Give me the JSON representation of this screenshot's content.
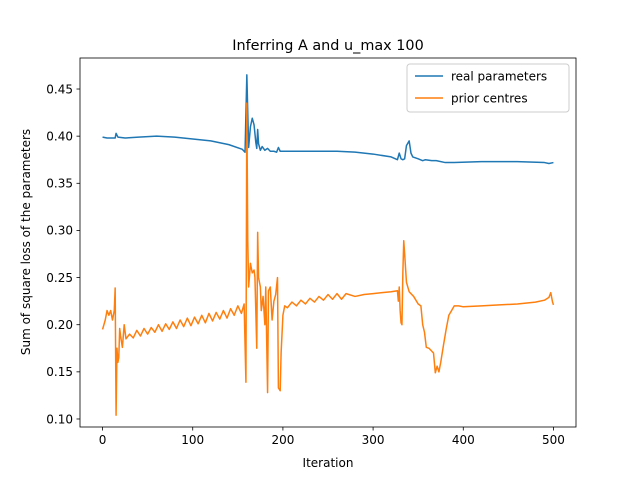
{
  "chart_data": {
    "type": "line",
    "title": "Inferring A and u_max 100",
    "xlabel": "Iteration",
    "ylabel": "Sum of square loss of the parameters",
    "xlim": [
      -25,
      525
    ],
    "ylim": [
      0.0915,
      0.4829
    ],
    "x_ticks": [
      0,
      100,
      200,
      300,
      400,
      500
    ],
    "x_tick_labels": [
      "0",
      "100",
      "200",
      "300",
      "400",
      "500"
    ],
    "y_ticks": [
      0.1,
      0.15,
      0.2,
      0.25,
      0.3,
      0.35,
      0.4,
      0.45
    ],
    "y_tick_labels": [
      "0.10",
      "0.15",
      "0.20",
      "0.25",
      "0.30",
      "0.35",
      "0.40",
      "0.45"
    ],
    "grid": false,
    "legend_position": "top-right",
    "series": [
      {
        "name": "real parameters",
        "color": "#1f77b4",
        "points": [
          [
            0,
            0.399
          ],
          [
            5,
            0.398
          ],
          [
            10,
            0.398
          ],
          [
            14,
            0.398
          ],
          [
            15,
            0.403
          ],
          [
            17,
            0.399
          ],
          [
            25,
            0.398
          ],
          [
            40,
            0.399
          ],
          [
            60,
            0.4
          ],
          [
            80,
            0.399
          ],
          [
            100,
            0.397
          ],
          [
            120,
            0.395
          ],
          [
            140,
            0.391
          ],
          [
            155,
            0.386
          ],
          [
            158,
            0.383
          ],
          [
            160,
            0.465
          ],
          [
            162,
            0.388
          ],
          [
            164,
            0.41
          ],
          [
            166,
            0.419
          ],
          [
            168,
            0.412
          ],
          [
            170,
            0.393
          ],
          [
            171,
            0.387
          ],
          [
            172,
            0.407
          ],
          [
            173,
            0.392
          ],
          [
            175,
            0.385
          ],
          [
            177,
            0.389
          ],
          [
            180,
            0.385
          ],
          [
            183,
            0.387
          ],
          [
            186,
            0.384
          ],
          [
            190,
            0.384
          ],
          [
            193,
            0.383
          ],
          [
            195,
            0.388
          ],
          [
            197,
            0.384
          ],
          [
            210,
            0.384
          ],
          [
            240,
            0.384
          ],
          [
            260,
            0.384
          ],
          [
            280,
            0.383
          ],
          [
            300,
            0.381
          ],
          [
            320,
            0.378
          ],
          [
            327,
            0.375
          ],
          [
            329,
            0.382
          ],
          [
            331,
            0.376
          ],
          [
            333,
            0.375
          ],
          [
            335,
            0.376
          ],
          [
            337,
            0.39
          ],
          [
            340,
            0.395
          ],
          [
            342,
            0.382
          ],
          [
            344,
            0.378
          ],
          [
            350,
            0.376
          ],
          [
            355,
            0.374
          ],
          [
            358,
            0.375
          ],
          [
            365,
            0.374
          ],
          [
            370,
            0.374
          ],
          [
            380,
            0.372
          ],
          [
            390,
            0.372
          ],
          [
            420,
            0.373
          ],
          [
            460,
            0.373
          ],
          [
            490,
            0.372
          ],
          [
            495,
            0.371
          ],
          [
            500,
            0.372
          ]
        ]
      },
      {
        "name": "prior centres",
        "color": "#ff7f0e",
        "points": [
          [
            0,
            0.195
          ],
          [
            3,
            0.205
          ],
          [
            5,
            0.215
          ],
          [
            7,
            0.21
          ],
          [
            9,
            0.215
          ],
          [
            11,
            0.205
          ],
          [
            13,
            0.215
          ],
          [
            14,
            0.239
          ],
          [
            15,
            0.104
          ],
          [
            16,
            0.175
          ],
          [
            17,
            0.16
          ],
          [
            18,
            0.165
          ],
          [
            19,
            0.196
          ],
          [
            20,
            0.188
          ],
          [
            22,
            0.176
          ],
          [
            24,
            0.2
          ],
          [
            26,
            0.185
          ],
          [
            30,
            0.19
          ],
          [
            34,
            0.186
          ],
          [
            38,
            0.194
          ],
          [
            42,
            0.188
          ],
          [
            46,
            0.196
          ],
          [
            50,
            0.19
          ],
          [
            54,
            0.197
          ],
          [
            58,
            0.192
          ],
          [
            62,
            0.2
          ],
          [
            66,
            0.193
          ],
          [
            70,
            0.201
          ],
          [
            74,
            0.195
          ],
          [
            78,
            0.203
          ],
          [
            82,
            0.196
          ],
          [
            86,
            0.205
          ],
          [
            90,
            0.198
          ],
          [
            94,
            0.207
          ],
          [
            98,
            0.199
          ],
          [
            102,
            0.208
          ],
          [
            106,
            0.201
          ],
          [
            110,
            0.21
          ],
          [
            114,
            0.202
          ],
          [
            118,
            0.212
          ],
          [
            122,
            0.204
          ],
          [
            126,
            0.213
          ],
          [
            130,
            0.206
          ],
          [
            134,
            0.215
          ],
          [
            138,
            0.207
          ],
          [
            142,
            0.217
          ],
          [
            146,
            0.21
          ],
          [
            150,
            0.22
          ],
          [
            154,
            0.212
          ],
          [
            157,
            0.222
          ],
          [
            158,
            0.18
          ],
          [
            159,
            0.139
          ],
          [
            160,
            0.435
          ],
          [
            161,
            0.29
          ],
          [
            162,
            0.24
          ],
          [
            164,
            0.265
          ],
          [
            166,
            0.255
          ],
          [
            168,
            0.258
          ],
          [
            169,
            0.25
          ],
          [
            171,
            0.175
          ],
          [
            172,
            0.298
          ],
          [
            173,
            0.25
          ],
          [
            175,
            0.24
          ],
          [
            176,
            0.215
          ],
          [
            178,
            0.23
          ],
          [
            180,
            0.2
          ],
          [
            181,
            0.24
          ],
          [
            183,
            0.128
          ],
          [
            184,
            0.236
          ],
          [
            186,
            0.24
          ],
          [
            188,
            0.205
          ],
          [
            190,
            0.225
          ],
          [
            192,
            0.232
          ],
          [
            194,
            0.25
          ],
          [
            195,
            0.133
          ],
          [
            197,
            0.13
          ],
          [
            198,
            0.17
          ],
          [
            200,
            0.21
          ],
          [
            202,
            0.22
          ],
          [
            205,
            0.218
          ],
          [
            210,
            0.224
          ],
          [
            215,
            0.22
          ],
          [
            220,
            0.226
          ],
          [
            225,
            0.222
          ],
          [
            230,
            0.228
          ],
          [
            235,
            0.224
          ],
          [
            240,
            0.23
          ],
          [
            245,
            0.226
          ],
          [
            250,
            0.232
          ],
          [
            255,
            0.227
          ],
          [
            260,
            0.233
          ],
          [
            265,
            0.227
          ],
          [
            270,
            0.233
          ],
          [
            280,
            0.23
          ],
          [
            290,
            0.232
          ],
          [
            300,
            0.233
          ],
          [
            310,
            0.234
          ],
          [
            320,
            0.235
          ],
          [
            327,
            0.236
          ],
          [
            328,
            0.225
          ],
          [
            329,
            0.24
          ],
          [
            330,
            0.215
          ],
          [
            331,
            0.202
          ],
          [
            332,
            0.2
          ],
          [
            333,
            0.255
          ],
          [
            334,
            0.289
          ],
          [
            335,
            0.275
          ],
          [
            337,
            0.245
          ],
          [
            340,
            0.235
          ],
          [
            345,
            0.23
          ],
          [
            350,
            0.222
          ],
          [
            353,
            0.22
          ],
          [
            355,
            0.2
          ],
          [
            357,
            0.192
          ],
          [
            359,
            0.176
          ],
          [
            362,
            0.175
          ],
          [
            365,
            0.172
          ],
          [
            367,
            0.17
          ],
          [
            369,
            0.149
          ],
          [
            371,
            0.156
          ],
          [
            373,
            0.15
          ],
          [
            375,
            0.16
          ],
          [
            378,
            0.178
          ],
          [
            381,
            0.195
          ],
          [
            384,
            0.21
          ],
          [
            387,
            0.215
          ],
          [
            390,
            0.22
          ],
          [
            395,
            0.22
          ],
          [
            400,
            0.219
          ],
          [
            420,
            0.22
          ],
          [
            440,
            0.221
          ],
          [
            460,
            0.222
          ],
          [
            480,
            0.224
          ],
          [
            490,
            0.226
          ],
          [
            495,
            0.229
          ],
          [
            497,
            0.234
          ],
          [
            498,
            0.229
          ],
          [
            499,
            0.224
          ],
          [
            500,
            0.221
          ]
        ]
      }
    ]
  }
}
